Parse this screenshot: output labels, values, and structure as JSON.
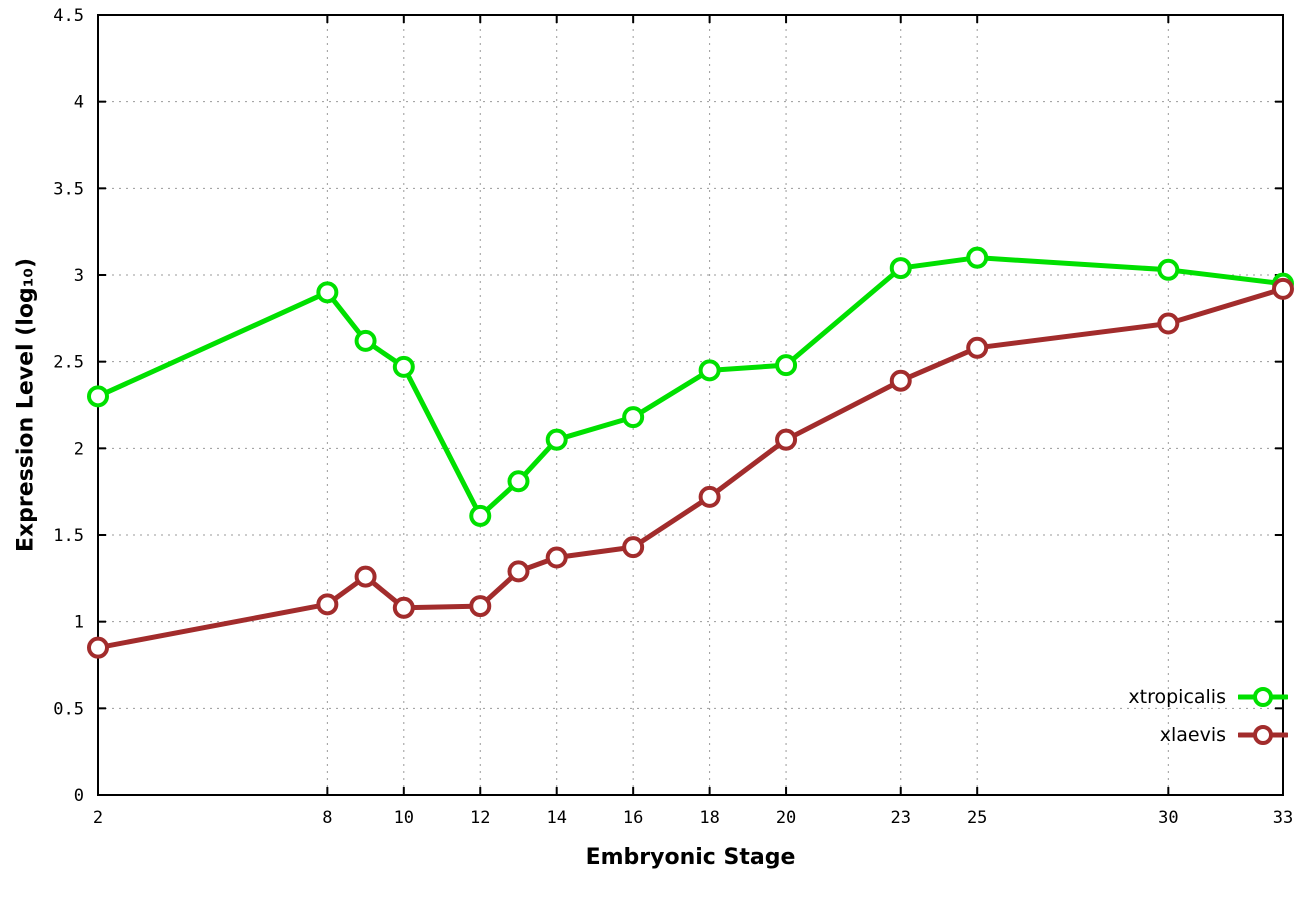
{
  "chart_data": {
    "type": "line",
    "title": "",
    "xlabel": "Embryonic Stage",
    "ylabel": "Expression Level (log₁₀)",
    "xlim": [
      2,
      33
    ],
    "ylim": [
      0,
      4.5
    ],
    "x_ticks": [
      2,
      8,
      10,
      12,
      14,
      16,
      18,
      20,
      23,
      25,
      30,
      33
    ],
    "y_ticks": [
      0,
      0.5,
      1,
      1.5,
      2,
      2.5,
      3,
      3.5,
      4,
      4.5
    ],
    "grid": true,
    "legend_position": "bottom-right",
    "marker": "open-circle",
    "background": "#ffffff",
    "x": [
      2,
      8,
      9,
      10,
      12,
      13,
      14,
      16,
      18,
      20,
      23,
      25,
      30,
      33
    ],
    "series": [
      {
        "name": "xtropicalis",
        "color": "#00e000",
        "values": [
          2.3,
          2.9,
          2.62,
          2.47,
          1.61,
          1.81,
          2.05,
          2.18,
          2.45,
          2.48,
          3.04,
          3.1,
          3.03,
          2.95
        ]
      },
      {
        "name": "xlaevis",
        "color": "#a22c2c",
        "values": [
          0.85,
          1.1,
          1.26,
          1.08,
          1.09,
          1.29,
          1.37,
          1.43,
          1.72,
          2.05,
          2.39,
          2.58,
          2.72,
          2.92
        ]
      }
    ]
  }
}
